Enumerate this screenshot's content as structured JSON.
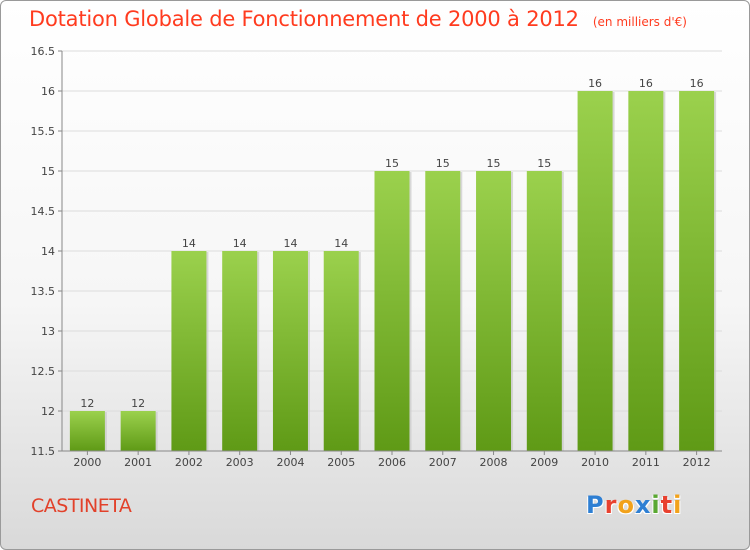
{
  "title": "Dotation Globale de Fonctionnement de 2000 à 2012",
  "subtitle": "(en milliers d'€)",
  "commune": "CASTINETA",
  "logo": {
    "text": "Proxiti",
    "colors": [
      "#2e7fd3",
      "#e8412f",
      "#f2a21b",
      "#2e7fd3",
      "#5aa832",
      "#e8412f",
      "#f2a21b"
    ]
  },
  "colors": {
    "title": "#ff3b1f",
    "bar_top": "#9bd14d",
    "bar_bottom": "#5f9a16"
  },
  "chart_data": {
    "type": "bar",
    "categories": [
      "2000",
      "2001",
      "2002",
      "2003",
      "2004",
      "2005",
      "2006",
      "2007",
      "2008",
      "2009",
      "2010",
      "2011",
      "2012"
    ],
    "values": [
      12,
      12,
      14,
      14,
      14,
      14,
      15,
      15,
      15,
      15,
      16,
      16,
      16
    ],
    "data_labels": [
      "12",
      "12",
      "14",
      "14",
      "14",
      "14",
      "15",
      "15",
      "15",
      "15",
      "16",
      "16",
      "16"
    ],
    "ylim": [
      11.5,
      16.5
    ],
    "yticks": [
      11.5,
      12,
      12.5,
      13,
      13.5,
      14,
      14.5,
      15,
      15.5,
      16,
      16.5
    ],
    "ytick_labels": [
      "11.5",
      "12",
      "12.5",
      "13",
      "13.5",
      "14",
      "14.5",
      "15",
      "15.5",
      "16",
      "16.5"
    ],
    "grid": "horizontal"
  }
}
